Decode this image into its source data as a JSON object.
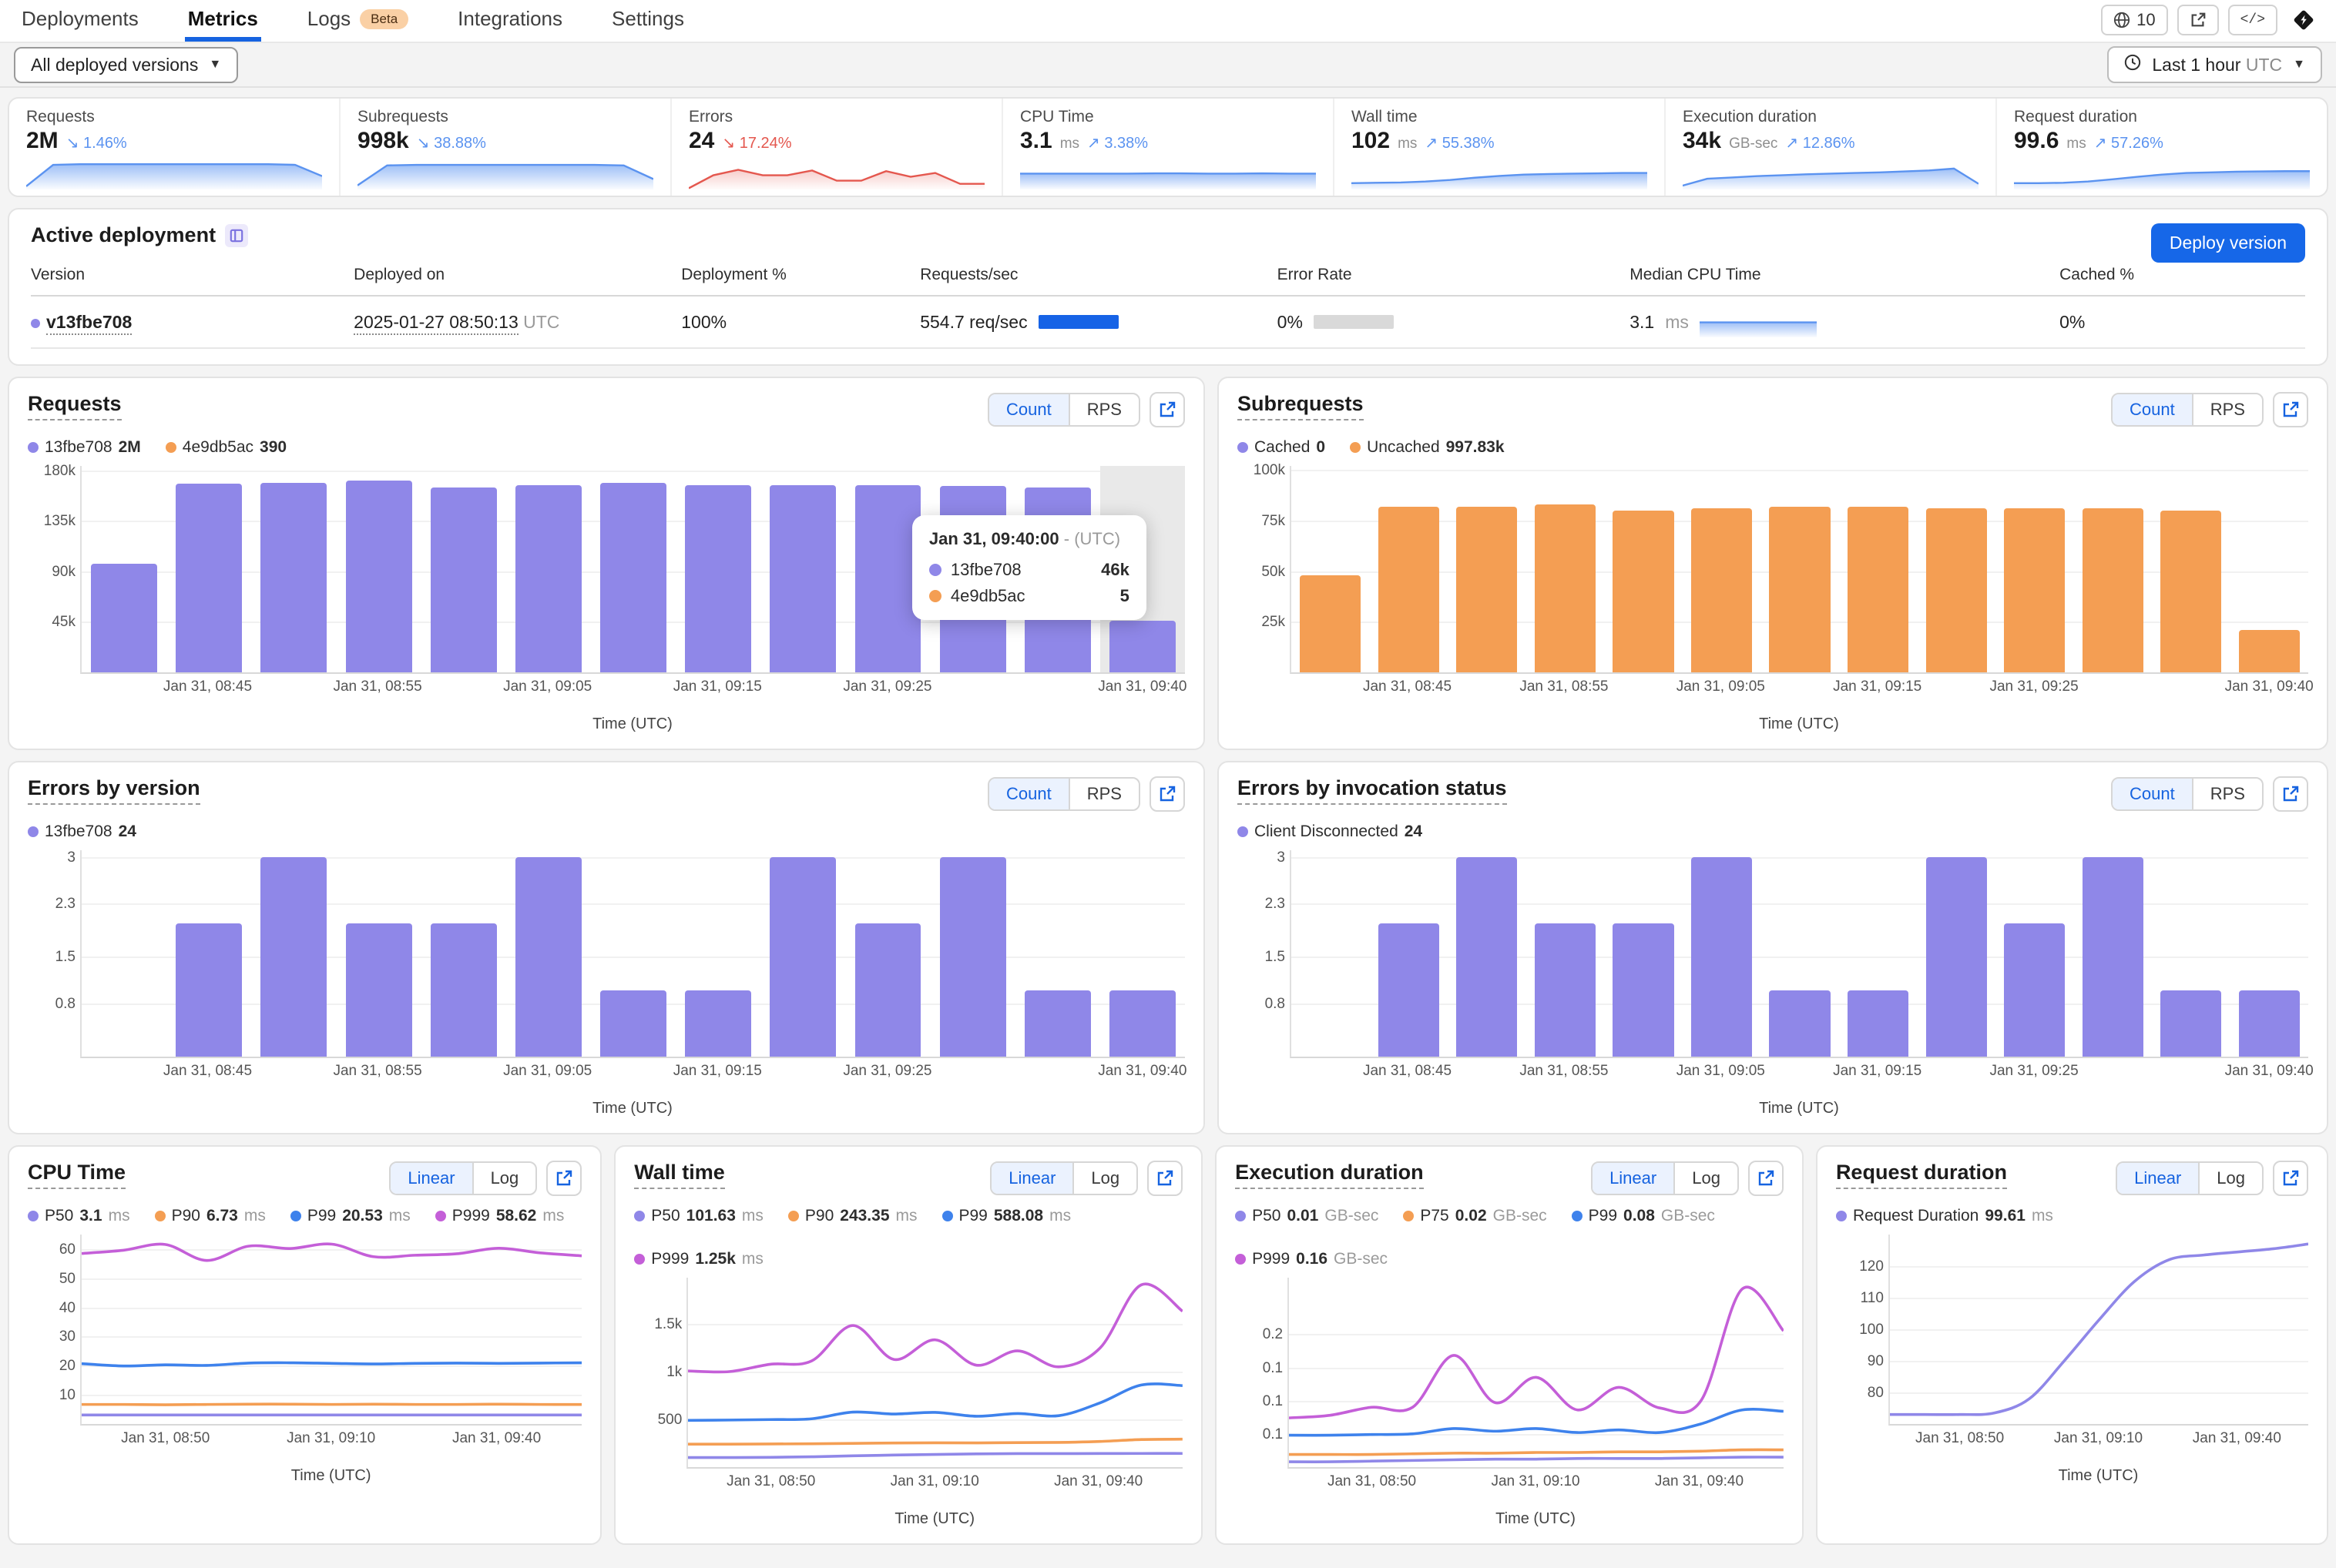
{
  "nav": {
    "tabs": [
      {
        "label": "Deployments"
      },
      {
        "label": "Metrics",
        "active": true
      },
      {
        "label": "Logs",
        "badge": "Beta"
      },
      {
        "label": "Integrations"
      },
      {
        "label": "Settings"
      }
    ],
    "toolbar": {
      "requests_badge": "10",
      "code_icon": "</>"
    }
  },
  "filterbar": {
    "versions_dropdown": "All deployed versions",
    "time_range": "Last 1 hour",
    "timezone": "UTC"
  },
  "stats": [
    {
      "label": "Requests",
      "value": "2M",
      "trend": "1.46%",
      "dir": "down",
      "trend_color": "#5B93F0",
      "spark_color": "blue",
      "spark": [
        0.1,
        0.78,
        0.8,
        0.8,
        0.8,
        0.8,
        0.8,
        0.8,
        0.8,
        0.8,
        0.78,
        0.42
      ]
    },
    {
      "label": "Subrequests",
      "value": "998k",
      "trend": "38.88%",
      "dir": "down",
      "trend_color": "#5B93F0",
      "spark_color": "blue",
      "spark": [
        0.13,
        0.76,
        0.78,
        0.78,
        0.78,
        0.78,
        0.78,
        0.78,
        0.78,
        0.76,
        0.33
      ]
    },
    {
      "label": "Errors",
      "value": "24",
      "trend": "17.24%",
      "dir": "down",
      "trend_color": "#E4574E",
      "spark_color": "red",
      "spark": [
        0.04,
        0.45,
        0.62,
        0.45,
        0.45,
        0.6,
        0.28,
        0.28,
        0.58,
        0.4,
        0.52,
        0.18,
        0.18
      ]
    },
    {
      "label": "CPU Time",
      "value": "3.1",
      "unit": "ms",
      "trend": "3.38%",
      "dir": "up",
      "trend_color": "#5B93F0",
      "spark_color": "blue",
      "spark": [
        0.5,
        0.5,
        0.5,
        0.5,
        0.5,
        0.51,
        0.51,
        0.5,
        0.5,
        0.51,
        0.5,
        0.5
      ]
    },
    {
      "label": "Wall time",
      "value": "102",
      "unit": "ms",
      "trend": "55.38%",
      "dir": "up",
      "trend_color": "#5B93F0",
      "spark_color": "blue",
      "spark": [
        0.2,
        0.21,
        0.22,
        0.25,
        0.3,
        0.37,
        0.43,
        0.47,
        0.49,
        0.5,
        0.51,
        0.52,
        0.52
      ]
    },
    {
      "label": "Execution duration",
      "value": "34k",
      "unit": "GB-sec",
      "trend": "12.86%",
      "dir": "up",
      "trend_color": "#5B93F0",
      "spark_color": "blue",
      "spark": [
        0.12,
        0.34,
        0.38,
        0.42,
        0.45,
        0.48,
        0.5,
        0.52,
        0.54,
        0.57,
        0.6,
        0.66,
        0.18
      ]
    },
    {
      "label": "Request duration",
      "value": "99.6",
      "unit": "ms",
      "trend": "57.26%",
      "dir": "up",
      "trend_color": "#5B93F0",
      "spark_color": "blue",
      "spark": [
        0.2,
        0.2,
        0.21,
        0.25,
        0.32,
        0.4,
        0.47,
        0.52,
        0.54,
        0.56,
        0.57,
        0.58,
        0.58
      ]
    }
  ],
  "deployment": {
    "title": "Active deployment",
    "deploy_button": "Deploy version",
    "columns": [
      "Version",
      "Deployed on",
      "Deployment %",
      "Requests/sec",
      "Error Rate",
      "Median CPU Time",
      "Cached %"
    ],
    "row": {
      "version": "v13fbe708",
      "deployed_on": "2025-01-27 08:50:13",
      "timezone": "UTC",
      "deployment_pct": "100%",
      "requests_sec": "554.7 req/sec",
      "error_rate": "0%",
      "median_cpu": "3.1",
      "median_cpu_unit": "ms",
      "cached_pct": "0%",
      "cpu_spark": [
        0.52,
        0.52,
        0.52,
        0.52,
        0.52,
        0.52,
        0.52
      ]
    }
  },
  "charts": {
    "requests": {
      "type": "bar",
      "title": "Requests",
      "toggle": [
        "Count",
        "RPS"
      ],
      "color": "#8F87E8",
      "legend": [
        {
          "name": "13fbe708",
          "value": "2M",
          "color": "#8F87E8"
        },
        {
          "name": "4e9db5ac",
          "value": "390",
          "color": "#F49E53"
        }
      ],
      "ymax": 184,
      "yticks": [
        {
          "label": "180k",
          "v": 180
        },
        {
          "label": "135k",
          "v": 135
        },
        {
          "label": "90k",
          "v": 90
        },
        {
          "label": "45k",
          "v": 45
        }
      ],
      "values": [
        97,
        168,
        169,
        171,
        165,
        167,
        169,
        167,
        167,
        167,
        166,
        165,
        46
      ],
      "hover_index": 12,
      "xticks": [
        {
          "label": "Jan 31, 08:45",
          "i": 1
        },
        {
          "label": "Jan 31, 08:55",
          "i": 3
        },
        {
          "label": "Jan 31, 09:05",
          "i": 5
        },
        {
          "label": "Jan 31, 09:15",
          "i": 7
        },
        {
          "label": "Jan 31, 09:25",
          "i": 9
        },
        {
          "label": "Jan 31, 09:40",
          "i": 12
        }
      ],
      "xlabel": "Time (UTC)",
      "tooltip": {
        "title": "Jan 31, 09:40:00",
        "suffix": "- (UTC)",
        "rows": [
          {
            "name": "13fbe708",
            "value": "46k",
            "color": "#8F87E8"
          },
          {
            "name": "4e9db5ac",
            "value": "5",
            "color": "#F49E53"
          }
        ]
      }
    },
    "subrequests": {
      "type": "bar",
      "title": "Subrequests",
      "toggle": [
        "Count",
        "RPS"
      ],
      "color": "#F49E53",
      "legend": [
        {
          "name": "Cached",
          "value": "0",
          "color": "#8F87E8"
        },
        {
          "name": "Uncached",
          "value": "997.83k",
          "color": "#F49E53"
        }
      ],
      "ymax": 102,
      "yticks": [
        {
          "label": "100k",
          "v": 100
        },
        {
          "label": "75k",
          "v": 75
        },
        {
          "label": "50k",
          "v": 50
        },
        {
          "label": "25k",
          "v": 25
        }
      ],
      "values": [
        48,
        82,
        82,
        83,
        80,
        81,
        82,
        82,
        81,
        81,
        81,
        80,
        21
      ],
      "xticks": [
        {
          "label": "Jan 31, 08:45",
          "i": 1
        },
        {
          "label": "Jan 31, 08:55",
          "i": 3
        },
        {
          "label": "Jan 31, 09:05",
          "i": 5
        },
        {
          "label": "Jan 31, 09:15",
          "i": 7
        },
        {
          "label": "Jan 31, 09:25",
          "i": 9
        },
        {
          "label": "Jan 31, 09:40",
          "i": 12
        }
      ],
      "xlabel": "Time (UTC)"
    },
    "errors_version": {
      "type": "bar",
      "title": "Errors by version",
      "toggle": [
        "Count",
        "RPS"
      ],
      "color": "#8F87E8",
      "legend": [
        {
          "name": "13fbe708",
          "value": "24",
          "color": "#8F87E8"
        }
      ],
      "ymax": 3.1,
      "yticks": [
        {
          "label": "3",
          "v": 3
        },
        {
          "label": "2.3",
          "v": 2.3
        },
        {
          "label": "1.5",
          "v": 1.5
        },
        {
          "label": "0.8",
          "v": 0.8
        }
      ],
      "values": [
        0,
        2,
        3,
        2,
        2,
        3,
        1,
        1,
        3,
        2,
        3,
        1,
        1
      ],
      "xticks": [
        {
          "label": "Jan 31, 08:45",
          "i": 1
        },
        {
          "label": "Jan 31, 08:55",
          "i": 3
        },
        {
          "label": "Jan 31, 09:05",
          "i": 5
        },
        {
          "label": "Jan 31, 09:15",
          "i": 7
        },
        {
          "label": "Jan 31, 09:25",
          "i": 9
        },
        {
          "label": "Jan 31, 09:40",
          "i": 12
        }
      ],
      "xlabel": "Time (UTC)"
    },
    "errors_status": {
      "type": "bar",
      "title": "Errors by invocation status",
      "toggle": [
        "Count",
        "RPS"
      ],
      "color": "#8F87E8",
      "legend": [
        {
          "name": "Client Disconnected",
          "value": "24",
          "color": "#8F87E8"
        }
      ],
      "ymax": 3.1,
      "yticks": [
        {
          "label": "3",
          "v": 3
        },
        {
          "label": "2.3",
          "v": 2.3
        },
        {
          "label": "1.5",
          "v": 1.5
        },
        {
          "label": "0.8",
          "v": 0.8
        }
      ],
      "values": [
        0,
        2,
        3,
        2,
        2,
        3,
        1,
        1,
        3,
        2,
        3,
        1,
        1
      ],
      "xticks": [
        {
          "label": "Jan 31, 08:45",
          "i": 1
        },
        {
          "label": "Jan 31, 08:55",
          "i": 3
        },
        {
          "label": "Jan 31, 09:05",
          "i": 5
        },
        {
          "label": "Jan 31, 09:15",
          "i": 7
        },
        {
          "label": "Jan 31, 09:25",
          "i": 9
        },
        {
          "label": "Jan 31, 09:40",
          "i": 12
        }
      ],
      "xlabel": "Time (UTC)"
    },
    "cpu_time": {
      "type": "line",
      "title": "CPU Time",
      "toggle": [
        "Linear",
        "Log"
      ],
      "legend": [
        {
          "name": "P50",
          "value": "3.1",
          "unit": "ms",
          "color": "#8F87E8"
        },
        {
          "name": "P90",
          "value": "6.73",
          "unit": "ms",
          "color": "#F49E53"
        },
        {
          "name": "P99",
          "value": "20.53",
          "unit": "ms",
          "color": "#3E82EC"
        },
        {
          "name": "P999",
          "value": "58.62",
          "unit": "ms",
          "color": "#C45FD8"
        }
      ],
      "ymin": 0,
      "ymax": 65,
      "yticks": [
        {
          "label": "60",
          "v": 60
        },
        {
          "label": "50",
          "v": 50
        },
        {
          "label": "40",
          "v": 40
        },
        {
          "label": "30",
          "v": 30
        },
        {
          "label": "20",
          "v": 20
        },
        {
          "label": "10",
          "v": 10
        }
      ],
      "series": [
        {
          "name": "P50",
          "color": "#8F87E8",
          "values": [
            3.1,
            3.1,
            3.1,
            3.1,
            3.1,
            3.1,
            3.1,
            3.1,
            3.1,
            3.1,
            3.1,
            3.1,
            3.1
          ]
        },
        {
          "name": "P90",
          "color": "#F49E53",
          "values": [
            6.7,
            6.7,
            6.6,
            6.7,
            6.8,
            6.8,
            6.7,
            6.8,
            6.7,
            6.7,
            6.8,
            6.7,
            6.7
          ]
        },
        {
          "name": "P99",
          "color": "#3E82EC",
          "values": [
            20.7,
            19.9,
            20.3,
            20.1,
            20.9,
            21.0,
            20.8,
            20.6,
            20.8,
            20.9,
            20.8,
            20.9,
            21.0
          ]
        },
        {
          "name": "P999",
          "color": "#C45FD8",
          "values": [
            58.5,
            59.6,
            61.6,
            56.1,
            61.0,
            60.2,
            61.7,
            57.4,
            57.9,
            58.4,
            60.3,
            58.7,
            57.7
          ]
        }
      ],
      "xticks": [
        {
          "label": "Jan 31, 08:50",
          "p": 17
        },
        {
          "label": "Jan 31, 09:10",
          "p": 50
        },
        {
          "label": "Jan 31, 09:40",
          "p": 83
        }
      ],
      "xlabel": "Time (UTC)"
    },
    "wall_time": {
      "type": "line",
      "title": "Wall time",
      "toggle": [
        "Linear",
        "Log"
      ],
      "legend": [
        {
          "name": "P50",
          "value": "101.63",
          "unit": "ms",
          "color": "#8F87E8"
        },
        {
          "name": "P90",
          "value": "243.35",
          "unit": "ms",
          "color": "#F49E53"
        },
        {
          "name": "P99",
          "value": "588.08",
          "unit": "ms",
          "color": "#3E82EC"
        },
        {
          "name": "P999",
          "value": "1.25k",
          "unit": "ms",
          "color": "#C45FD8"
        }
      ],
      "ymin": 0,
      "ymax": 1980,
      "yticks": [
        {
          "label": "1.5k",
          "v": 1500
        },
        {
          "label": "1k",
          "v": 1000
        },
        {
          "label": "500",
          "v": 500
        }
      ],
      "series": [
        {
          "name": "P50",
          "color": "#8F87E8",
          "values": [
            100,
            100,
            102,
            108,
            118,
            126,
            132,
            138,
            141,
            141,
            142,
            143,
            143
          ]
        },
        {
          "name": "P90",
          "color": "#F49E53",
          "values": [
            240,
            240,
            242,
            244,
            248,
            252,
            254,
            253,
            256,
            258,
            268,
            288,
            292
          ]
        },
        {
          "name": "P99",
          "color": "#3E82EC",
          "values": [
            488,
            492,
            497,
            505,
            575,
            555,
            572,
            532,
            560,
            538,
            672,
            858,
            852
          ]
        },
        {
          "name": "P999",
          "color": "#C45FD8",
          "values": [
            1005,
            998,
            1075,
            1110,
            1480,
            1125,
            1330,
            1065,
            1215,
            1048,
            1245,
            1905,
            1630
          ]
        }
      ],
      "xticks": [
        {
          "label": "Jan 31, 08:50",
          "p": 17
        },
        {
          "label": "Jan 31, 09:10",
          "p": 50
        },
        {
          "label": "Jan 31, 09:40",
          "p": 83
        }
      ],
      "xlabel": "Time (UTC)"
    },
    "exec_duration": {
      "type": "line",
      "title": "Execution duration",
      "toggle": [
        "Linear",
        "Log"
      ],
      "legend": [
        {
          "name": "P50",
          "value": "0.01",
          "unit": "GB-sec",
          "color": "#8F87E8"
        },
        {
          "name": "P75",
          "value": "0.02",
          "unit": "GB-sec",
          "color": "#F49E53"
        },
        {
          "name": "P99",
          "value": "0.08",
          "unit": "GB-sec",
          "color": "#3E82EC"
        },
        {
          "name": "P999",
          "value": "0.16",
          "unit": "GB-sec",
          "color": "#C45FD8"
        }
      ],
      "ymin": 0,
      "ymax": 0.285,
      "yticks": [
        {
          "label": "0.2",
          "v": 0.2
        },
        {
          "label": "0.1",
          "v": 0.15
        },
        {
          "label": "0.1",
          "v": 0.1
        },
        {
          "label": "0.1",
          "v": 0.05
        }
      ],
      "series": [
        {
          "name": "P50",
          "color": "#8F87E8",
          "values": [
            0.008,
            0.008,
            0.009,
            0.01,
            0.011,
            0.012,
            0.012,
            0.013,
            0.013,
            0.013,
            0.014,
            0.015,
            0.015
          ]
        },
        {
          "name": "P75",
          "color": "#F49E53",
          "values": [
            0.019,
            0.019,
            0.019,
            0.02,
            0.021,
            0.021,
            0.022,
            0.022,
            0.023,
            0.023,
            0.024,
            0.026,
            0.026
          ]
        },
        {
          "name": "P99",
          "color": "#3E82EC",
          "values": [
            0.048,
            0.048,
            0.049,
            0.05,
            0.058,
            0.054,
            0.058,
            0.052,
            0.056,
            0.052,
            0.065,
            0.086,
            0.084
          ]
        },
        {
          "name": "P999",
          "color": "#C45FD8",
          "values": [
            0.074,
            0.078,
            0.09,
            0.09,
            0.168,
            0.097,
            0.135,
            0.086,
            0.12,
            0.089,
            0.1,
            0.268,
            0.205
          ]
        }
      ],
      "xticks": [
        {
          "label": "Jan 31, 08:50",
          "p": 17
        },
        {
          "label": "Jan 31, 09:10",
          "p": 50
        },
        {
          "label": "Jan 31, 09:40",
          "p": 83
        }
      ],
      "xlabel": "Time (UTC)"
    },
    "req_duration": {
      "type": "line",
      "title": "Request duration",
      "toggle": [
        "Linear",
        "Log"
      ],
      "legend": [
        {
          "name": "Request Duration",
          "value": "99.61",
          "unit": "ms",
          "color": "#8F87E8"
        }
      ],
      "ymin": 70,
      "ymax": 130,
      "yticks": [
        {
          "label": "120",
          "v": 120
        },
        {
          "label": "110",
          "v": 110
        },
        {
          "label": "100",
          "v": 100
        },
        {
          "label": "90",
          "v": 90
        },
        {
          "label": "80",
          "v": 80
        }
      ],
      "series": [
        {
          "name": "Request Duration",
          "color": "#8F87E8",
          "values": [
            73,
            73,
            73,
            73.5,
            78,
            90,
            103,
            115,
            122,
            123.5,
            124.5,
            125.5,
            127
          ]
        }
      ],
      "xticks": [
        {
          "label": "Jan 31, 08:50",
          "p": 17
        },
        {
          "label": "Jan 31, 09:10",
          "p": 50
        },
        {
          "label": "Jan 31, 09:40",
          "p": 83
        }
      ],
      "xlabel": "Time (UTC)"
    }
  }
}
